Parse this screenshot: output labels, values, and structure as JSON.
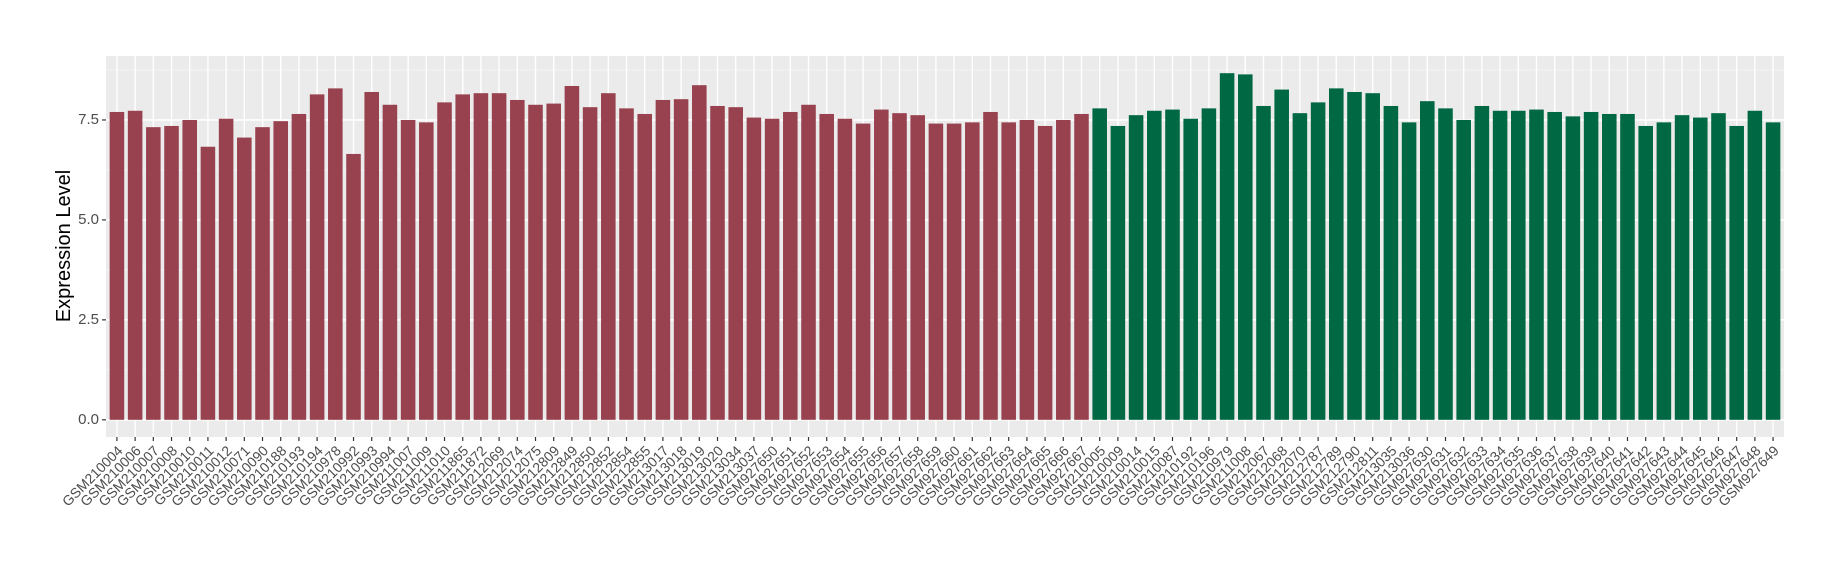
{
  "chart_data": {
    "type": "bar",
    "y_label": "Expression Level",
    "categories": [
      "GSM210004",
      "GSM210006",
      "GSM210007",
      "GSM210008",
      "GSM210010",
      "GSM210011",
      "GSM210012",
      "GSM210071",
      "GSM210090",
      "GSM210188",
      "GSM210193",
      "GSM210194",
      "GSM210978",
      "GSM210992",
      "GSM210993",
      "GSM210994",
      "GSM211007",
      "GSM211009",
      "GSM211010",
      "GSM211865",
      "GSM211872",
      "GSM212069",
      "GSM212074",
      "GSM212075",
      "GSM212809",
      "GSM212849",
      "GSM212850",
      "GSM212852",
      "GSM212854",
      "GSM212855",
      "GSM213017",
      "GSM213018",
      "GSM213019",
      "GSM213020",
      "GSM213034",
      "GSM213037",
      "GSM927650",
      "GSM927651",
      "GSM927652",
      "GSM927653",
      "GSM927654",
      "GSM927655",
      "GSM927656",
      "GSM927657",
      "GSM927658",
      "GSM927659",
      "GSM927660",
      "GSM927661",
      "GSM927662",
      "GSM927663",
      "GSM927664",
      "GSM927665",
      "GSM927666",
      "GSM927667",
      "GSM210005",
      "GSM210009",
      "GSM210014",
      "GSM210015",
      "GSM210087",
      "GSM210192",
      "GSM210196",
      "GSM210979",
      "GSM211008",
      "GSM212067",
      "GSM212068",
      "GSM212070",
      "GSM212787",
      "GSM212789",
      "GSM212790",
      "GSM212811",
      "GSM213035",
      "GSM213036",
      "GSM927630",
      "GSM927631",
      "GSM927632",
      "GSM927633",
      "GSM927634",
      "GSM927635",
      "GSM927636",
      "GSM927637",
      "GSM927638",
      "GSM927639",
      "GSM927640",
      "GSM927641",
      "GSM927642",
      "GSM927643",
      "GSM927644",
      "GSM927645",
      "GSM927646",
      "GSM927647",
      "GSM927648",
      "GSM927649"
    ],
    "values": [
      7.7,
      7.73,
      7.32,
      7.35,
      7.5,
      6.83,
      7.53,
      7.06,
      7.32,
      7.47,
      7.65,
      8.14,
      8.29,
      6.65,
      8.2,
      7.88,
      7.5,
      7.44,
      7.94,
      8.14,
      8.17,
      8.17,
      8.0,
      7.88,
      7.91,
      8.35,
      7.82,
      8.17,
      7.79,
      7.65,
      8.0,
      8.02,
      8.37,
      7.85,
      7.82,
      7.56,
      7.53,
      7.7,
      7.88,
      7.65,
      7.53,
      7.41,
      7.76,
      7.67,
      7.62,
      7.41,
      7.41,
      7.44,
      7.7,
      7.44,
      7.5,
      7.35,
      7.5,
      7.65,
      7.79,
      7.35,
      7.62,
      7.73,
      7.76,
      7.53,
      7.79,
      8.67,
      8.64,
      7.85,
      8.26,
      7.67,
      7.94,
      8.29,
      8.2,
      8.17,
      7.85,
      7.44,
      7.97,
      7.79,
      7.5,
      7.85,
      7.73,
      7.73,
      7.76,
      7.7,
      7.59,
      7.7,
      7.65,
      7.65,
      7.35,
      7.44,
      7.62,
      7.56,
      7.67,
      7.35,
      7.73,
      7.44
    ],
    "colors": [
      "#99424f",
      "#99424f",
      "#99424f",
      "#99424f",
      "#99424f",
      "#99424f",
      "#99424f",
      "#99424f",
      "#99424f",
      "#99424f",
      "#99424f",
      "#99424f",
      "#99424f",
      "#99424f",
      "#99424f",
      "#99424f",
      "#99424f",
      "#99424f",
      "#99424f",
      "#99424f",
      "#99424f",
      "#99424f",
      "#99424f",
      "#99424f",
      "#99424f",
      "#99424f",
      "#99424f",
      "#99424f",
      "#99424f",
      "#99424f",
      "#99424f",
      "#99424f",
      "#99424f",
      "#99424f",
      "#99424f",
      "#99424f",
      "#99424f",
      "#99424f",
      "#99424f",
      "#99424f",
      "#99424f",
      "#99424f",
      "#99424f",
      "#99424f",
      "#99424f",
      "#99424f",
      "#99424f",
      "#99424f",
      "#99424f",
      "#99424f",
      "#99424f",
      "#99424f",
      "#99424f",
      "#99424f",
      "#006843",
      "#006843",
      "#006843",
      "#006843",
      "#006843",
      "#006843",
      "#006843",
      "#006843",
      "#006843",
      "#006843",
      "#006843",
      "#006843",
      "#006843",
      "#006843",
      "#006843",
      "#006843",
      "#006843",
      "#006843",
      "#006843",
      "#006843",
      "#006843",
      "#006843",
      "#006843",
      "#006843",
      "#006843",
      "#006843",
      "#006843",
      "#006843",
      "#006843",
      "#006843",
      "#006843",
      "#006843",
      "#006843",
      "#006843",
      "#006843",
      "#006843",
      "#006843",
      "#006843"
    ],
    "ylim": [
      -0.43,
      9.1
    ],
    "yticks": [
      {
        "value": 0,
        "label": "0.0"
      },
      2.5,
      {
        "value": 5,
        "label": "5.0"
      },
      7.5
    ],
    "grid": true
  }
}
